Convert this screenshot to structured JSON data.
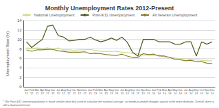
{
  "chart_data": {
    "type": "line",
    "title": "Monthly Unemployment Rates 2012-Present",
    "ylabel": "Unemployment Rate (%)",
    "annotations": [
      "* The Post-9/11 veteran population is much smaller than that used to calculate the national average, so month-to-month changes appear to be more dramatic. Overall, there is\nstill a downward trend."
    ],
    "categories": [
      "Jan\n12",
      "Feb\n12",
      "Mar\n12",
      "Apr\n12",
      "May\n12",
      "Jun\n12",
      "Jul\n12",
      "Aug\n12",
      "Sep\n12",
      "Oct\n12",
      "Nov\n12",
      "Dec\n12",
      "Jan\n13",
      "Feb\n13",
      "Mar\n13",
      "Apr\n13",
      "May\n13",
      "Jun\n13",
      "Jul\n13",
      "Aug\n13",
      "Sep\n13",
      "Oct\n13",
      "Nov\n13",
      "Dec\n13",
      "Jan\n14",
      "Feb\n14",
      "Mar\n14",
      "Apr\n14",
      "May\n14",
      "Jun\n14",
      "Jul\n14",
      "Aug\n14",
      "Sep\n14",
      "Oct\n14",
      "Nov\n14",
      "Dec\n14"
    ],
    "series": [
      {
        "name": "National Unemployment",
        "color": "#c6e08a",
        "values": [
          8.2,
          8.1,
          8.2,
          8.1,
          8.2,
          8.0,
          8.2,
          7.8,
          7.8,
          7.7,
          7.8,
          7.8,
          7.9,
          7.7,
          7.5,
          7.5,
          7.5,
          7.5,
          7.3,
          7.2,
          7.1,
          7.0,
          6.7,
          6.7,
          6.6,
          6.7,
          6.3,
          6.2,
          6.1,
          5.9,
          5.9,
          5.8,
          5.7,
          5.6,
          5.5,
          5.5
        ]
      },
      {
        "name": "Post-9/11 Unemployment",
        "color": "#4a5e1a",
        "values": [
          9.5,
          8.3,
          9.2,
          10.0,
          12.8,
          13.0,
          10.8,
          10.5,
          9.7,
          9.8,
          10.0,
          10.0,
          10.5,
          9.9,
          9.5,
          9.8,
          10.3,
          9.8,
          10.5,
          9.4,
          7.3,
          6.5,
          10.0,
          10.0,
          10.0,
          9.5,
          9.5,
          9.5,
          9.0,
          9.0,
          9.5,
          9.5,
          6.5,
          9.5,
          9.0,
          9.5
        ]
      },
      {
        "name": "All Veteran Unemployment",
        "color": "#8b7a25",
        "values": [
          7.8,
          7.5,
          7.8,
          7.8,
          7.9,
          7.9,
          7.6,
          7.5,
          7.3,
          7.3,
          7.3,
          7.4,
          7.0,
          7.1,
          7.0,
          6.8,
          6.7,
          6.6,
          6.9,
          6.5,
          6.2,
          6.2,
          7.0,
          6.8,
          6.9,
          6.5,
          6.5,
          6.2,
          5.8,
          5.7,
          5.5,
          5.6,
          5.3,
          5.3,
          5.0,
          4.9
        ]
      }
    ],
    "ylim": [
      0,
      14
    ],
    "yticks": [
      0,
      2,
      4,
      6,
      8,
      10,
      12,
      14
    ],
    "grid": true,
    "legend": "top"
  }
}
